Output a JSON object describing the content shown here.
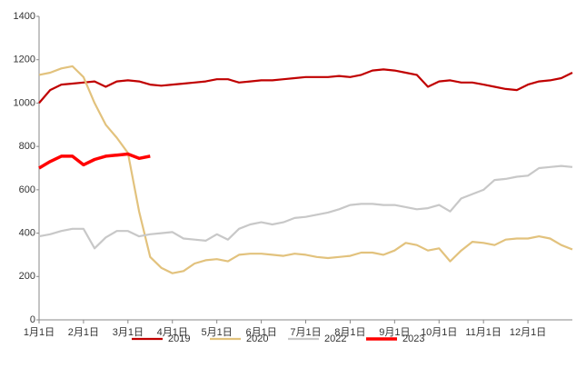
{
  "chart_data": {
    "type": "line",
    "categories": [
      "1月1日",
      null,
      null,
      null,
      "2月1日",
      null,
      null,
      null,
      "3月1日",
      null,
      null,
      null,
      "4月1日",
      null,
      null,
      null,
      "5月1日",
      null,
      null,
      null,
      "6月1日",
      null,
      null,
      null,
      "7月1日",
      null,
      null,
      null,
      "8月1日",
      null,
      null,
      null,
      "9月1日",
      null,
      null,
      null,
      "10月1日",
      null,
      null,
      null,
      "11月1日",
      null,
      null,
      null,
      "12月1日",
      null,
      null,
      null,
      null
    ],
    "series": [
      {
        "name": "2019",
        "color": "#c00000",
        "values": [
          1000,
          1060,
          1085,
          1090,
          1095,
          1100,
          1075,
          1100,
          1105,
          1100,
          1085,
          1080,
          1085,
          1090,
          1095,
          1100,
          1110,
          1110,
          1095,
          1100,
          1105,
          1105,
          1110,
          1115,
          1120,
          1120,
          1120,
          1125,
          1120,
          1130,
          1150,
          1155,
          1150,
          1140,
          1130,
          1075,
          1100,
          1105,
          1095,
          1095,
          1085,
          1075,
          1065,
          1060,
          1085,
          1100,
          1105,
          1115,
          1140
        ]
      },
      {
        "name": "2020",
        "color": "#e2c27d",
        "values": [
          1130,
          1140,
          1160,
          1170,
          1120,
          1000,
          900,
          840,
          770,
          500,
          290,
          240,
          215,
          225,
          260,
          275,
          280,
          270,
          300,
          305,
          305,
          300,
          295,
          305,
          300,
          290,
          285,
          290,
          295,
          310,
          310,
          300,
          320,
          355,
          345,
          320,
          330,
          270,
          320,
          360,
          355,
          345,
          370,
          375,
          375,
          385,
          375,
          345,
          325
        ]
      },
      {
        "name": "2022",
        "color": "#c8c8c8",
        "values": [
          385,
          395,
          410,
          420,
          420,
          330,
          380,
          410,
          410,
          385,
          395,
          400,
          405,
          375,
          370,
          365,
          395,
          370,
          420,
          440,
          450,
          440,
          450,
          470,
          475,
          485,
          495,
          510,
          530,
          535,
          535,
          530,
          530,
          520,
          510,
          515,
          530,
          500,
          560,
          580,
          600,
          645,
          650,
          660,
          665,
          700,
          705,
          710,
          705
        ]
      },
      {
        "name": "2023",
        "color": "#ff0000",
        "values": [
          700,
          730,
          755,
          755,
          715,
          740,
          755,
          760,
          765,
          745,
          755,
          null,
          null,
          null,
          null,
          null,
          null,
          null,
          null,
          null,
          null,
          null,
          null,
          null,
          null,
          null,
          null,
          null,
          null,
          null,
          null,
          null,
          null,
          null,
          null,
          null,
          null,
          null,
          null,
          null,
          null,
          null,
          null,
          null,
          null,
          null,
          null,
          null,
          null
        ]
      }
    ],
    "ylim": [
      0,
      1400
    ],
    "yticks": [
      0,
      200,
      400,
      600,
      800,
      1000,
      1200,
      1400
    ],
    "grid": false,
    "legend": "bottom"
  }
}
